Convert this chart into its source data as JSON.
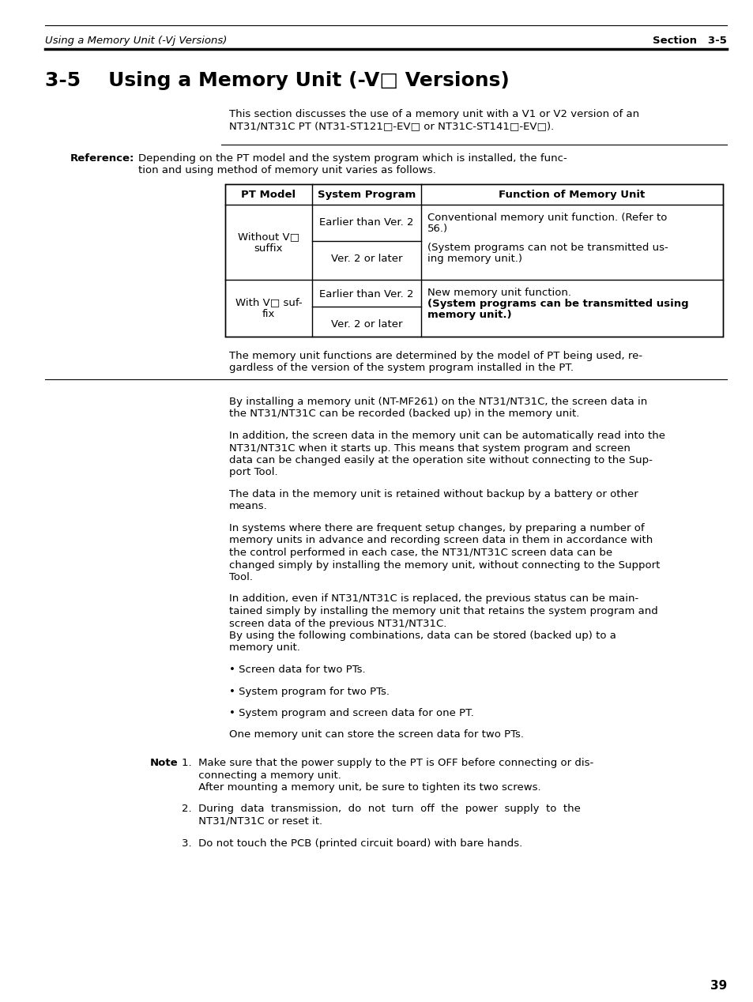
{
  "header_italic": "Using a Memory Unit (-Vj Versions)",
  "header_right": "Section   3-5",
  "title": "3-5    Using a Memory Unit (-V□ Versions)",
  "intro_line1": "This section discusses the use of a memory unit with a V1 or V2 version of an",
  "intro_line2": "NT31/NT31C PT (NT31-ST121□-EV□ or NT31C-ST141□-EV□).",
  "reference_label": "Reference:",
  "reference_line1": "Depending on the PT model and the system program which is installed, the func-",
  "reference_line2": "tion and using method of memory unit varies as follows.",
  "table_col_headers": [
    "PT Model",
    "System Program",
    "Function of Memory Unit"
  ],
  "row1_model": "Without V□\nsuffix",
  "row1_prog1": "Earlier than Ver. 2",
  "row1_prog2": "Ver. 2 or later",
  "row1_func1": "Conventional memory unit function. (Refer to",
  "row1_func2": "56.)",
  "row1_func3": "(System programs can not be transmitted us-",
  "row1_func4": "ing memory unit.)",
  "row2_model": "With V□ suf-\nfix",
  "row2_prog1": "Earlier than Ver. 2",
  "row2_prog2": "Ver. 2 or later",
  "row2_func1": "New memory unit function.",
  "row2_func2": "(System programs can be transmitted using",
  "row2_func3": "memory unit.)",
  "note_line1": "The memory unit functions are determined by the model of PT being used, re-",
  "note_line2": "gardless of the version of the system program installed in the PT.",
  "para1_l1": "By installing a memory unit (NT-MF261) on the NT31/NT31C, the screen data in",
  "para1_l2": "the NT31/NT31C can be recorded (backed up) in the memory unit.",
  "para2_l1": "In addition, the screen data in the memory unit can be automatically read into the",
  "para2_l2": "NT31/NT31C when it starts up. This means that system program and screen",
  "para2_l3": "data can be changed easily at the operation site without connecting to the Sup-",
  "para2_l4": "port Tool.",
  "para3_l1": "The data in the memory unit is retained without backup by a battery or other",
  "para3_l2": "means.",
  "para4_l1": "In systems where there are frequent setup changes, by preparing a number of",
  "para4_l2": "memory units in advance and recording screen data in them in accordance with",
  "para4_l3": "the control performed in each case, the NT31/NT31C screen data can be",
  "para4_l4": "changed simply by installing the memory unit, without connecting to the Support",
  "para4_l5": "Tool.",
  "para5_l1": "In addition, even if NT31/NT31C is replaced, the previous status can be main-",
  "para5_l2": "tained simply by installing the memory unit that retains the system program and",
  "para5_l3": "screen data of the previous NT31/NT31C.",
  "para5_l4": "By using the following combinations, data can be stored (backed up) to a",
  "para5_l5": "memory unit.",
  "bullet1": "• Screen data for two PTs.",
  "bullet2": "• System program for two PTs.",
  "bullet3": "• System program and screen data for one PT.",
  "after_bullets": "One memory unit can store the screen data for two PTs.",
  "note_label": "Note",
  "note1_l1": "1.  Make sure that the power supply to the PT is OFF before connecting or dis-",
  "note1_l2": "     connecting a memory unit.",
  "note1_l3": "     After mounting a memory unit, be sure to tighten its two screws.",
  "note2_l1": "2.  During  data  transmission,  do  not  turn  off  the  power  supply  to  the",
  "note2_l2": "     NT31/NT31C or reset it.",
  "note3_l1": "3.  Do not touch the PCB (printed circuit board) with bare hands.",
  "page_number": "39",
  "bg_color": "#ffffff"
}
